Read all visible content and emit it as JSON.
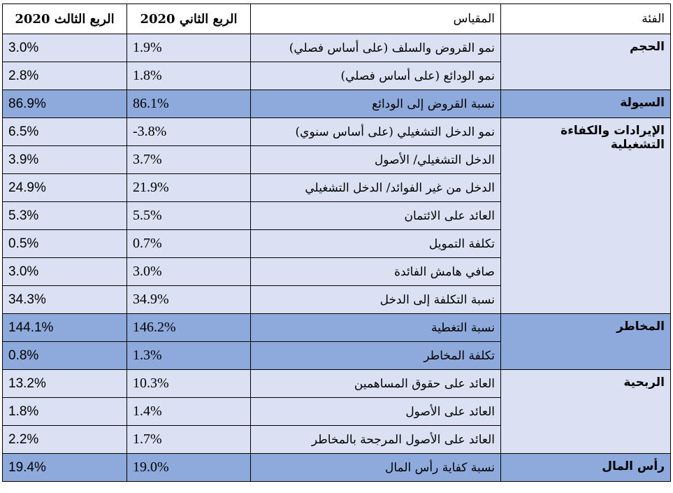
{
  "headers": {
    "category": "الفئة",
    "metric": "المقياس",
    "q2": "الربع الثاني 2020",
    "q3": "الربع الثالث 2020"
  },
  "groups": [
    {
      "category": "الحجم",
      "shade": "light",
      "rows": [
        {
          "metric": "نمو القروض والسلف (على أساس فصلي)",
          "q2": "1.9%",
          "q3": "3.0%"
        },
        {
          "metric": "نمو الودائع (على أساس فصلي)",
          "q2": "1.8%",
          "q3": "2.8%"
        }
      ]
    },
    {
      "category": "السيولة",
      "shade": "dark",
      "rows": [
        {
          "metric": "نسبة القروض إلى الودائع",
          "q2": "86.1%",
          "q3": "86.9%"
        }
      ]
    },
    {
      "category": "الإيرادات والكفاءة التشغيلية",
      "shade": "light",
      "rows": [
        {
          "metric": "نمو الدخل التشغيلي (على أساس سنوي)",
          "q2": "-3.8%",
          "q3": "6.5%"
        },
        {
          "metric": "الدخل التشغيلي/ الأصول",
          "q2": "3.7%",
          "q3": "3.9%"
        },
        {
          "metric": "الدخل من غير الفوائد/ الدخل التشغيلي",
          "q2": "21.9%",
          "q3": "24.9%"
        },
        {
          "metric": "العائد على الائتمان",
          "q2": "5.5%",
          "q3": "5.3%"
        },
        {
          "metric": "تكلفة التمويل",
          "q2": "0.7%",
          "q3": "0.5%"
        },
        {
          "metric": "صافي هامش الفائدة",
          "q2": "3.0%",
          "q3": "3.0%"
        },
        {
          "metric": "نسبة التكلفة إلى الدخل",
          "q2": "34.9%",
          "q3": "34.3%"
        }
      ]
    },
    {
      "category": "المخاطر",
      "shade": "dark",
      "rows": [
        {
          "metric": "نسبة التغطية",
          "q2": "146.2%",
          "q3": "144.1%"
        },
        {
          "metric": "تكلفة المخاطر",
          "q2": "1.3%",
          "q3": "0.8%"
        }
      ]
    },
    {
      "category": "الربحية",
      "shade": "light",
      "rows": [
        {
          "metric": "العائد على حقوق المساهمين",
          "q2": "10.3%",
          "q3": "13.2%"
        },
        {
          "metric": "العائد على الأصول",
          "q2": "1.4%",
          "q3": "1.8%"
        },
        {
          "metric": "العائد على الأصول المرجحة بالمخاطر",
          "q2": "1.7%",
          "q3": "2.2%"
        }
      ]
    },
    {
      "category": "رأس المال",
      "shade": "dark",
      "rows": [
        {
          "metric": "نسبة كفاية رأس المال",
          "q2": "19.0%",
          "q3": "19.4%"
        }
      ]
    }
  ],
  "colors": {
    "light_row": "#d9e1f2",
    "dark_row": "#8ea9db",
    "border": "#000000"
  }
}
